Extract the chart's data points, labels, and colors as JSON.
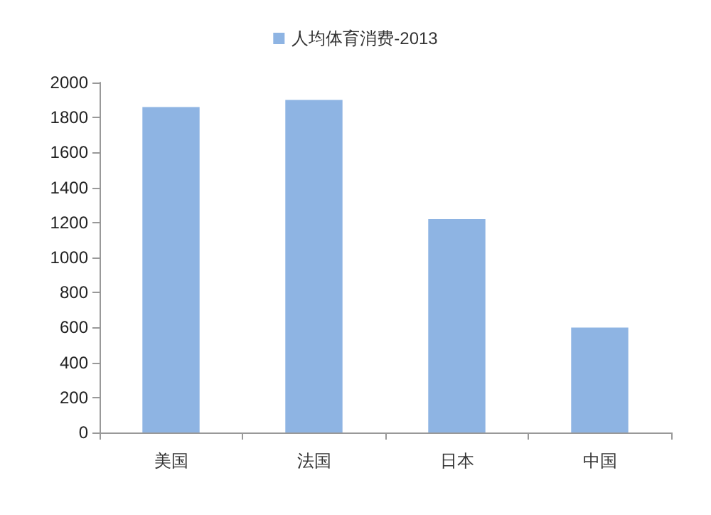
{
  "chart_data": {
    "type": "bar",
    "categories": [
      "美国",
      "法国",
      "日本",
      "中国"
    ],
    "series": [
      {
        "name": "人均体育消费-2013",
        "color": "#8eb4e3",
        "values": [
          1860,
          1900,
          1220,
          600
        ]
      }
    ],
    "ylim": [
      0,
      2000
    ],
    "yticks": [
      0,
      200,
      400,
      600,
      800,
      1000,
      1200,
      1400,
      1600,
      1800,
      2000
    ],
    "grid": false,
    "legend": "top"
  }
}
